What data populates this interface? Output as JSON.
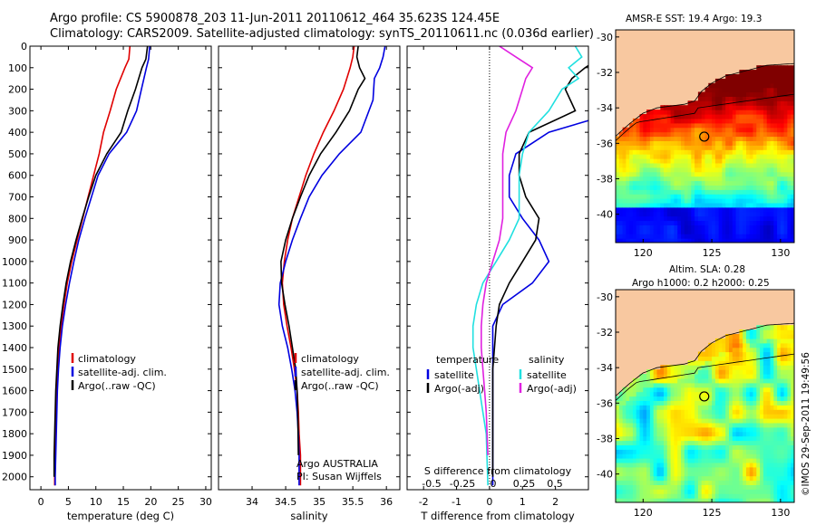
{
  "title_line1": "Argo profile: CS 5900878_203 11-Jun-2011 20110612_464 35.623S 124.45E",
  "title_line2": "Climatology: CARS2009. Satellite-adjusted climatology: synTS_20110611.nc (0.036d earlier)",
  "sst_title": "AMSR-E SST: 19.4  Argo: 19.3",
  "sla_title_line1": "Altim. SLA: 0.28",
  "sla_title_line2": "Argo h1000: 0.2 h2000: 0.25",
  "credit": "©IMOS 29-Sep-2011 19:49:56",
  "colors": {
    "climatology": "#e00000",
    "satellite": "#0000e0",
    "argo": "#000000",
    "salinity_sat": "#20e0e0",
    "salinity_argo": "#e020e0",
    "land": "#f8c8a0"
  },
  "chart_data": [
    {
      "type": "line",
      "name": "temperature",
      "xlabel": "temperature (deg C)",
      "xlim": [
        -2,
        31
      ],
      "ylim": [
        0,
        2060
      ],
      "yticks": [
        0,
        100,
        200,
        300,
        400,
        500,
        600,
        700,
        800,
        900,
        1000,
        1100,
        1200,
        1300,
        1400,
        1500,
        1600,
        1700,
        1800,
        1900,
        2000
      ],
      "xticks": [
        0,
        5,
        10,
        15,
        20,
        25,
        30
      ],
      "legend": [
        "climatology",
        "satellite-adj. clim.",
        "Argo(..raw -QC)"
      ],
      "series": [
        {
          "name": "climatology",
          "color": "#e00000",
          "x": [
            16.2,
            16.0,
            15.3,
            13.7,
            12.6,
            11.4,
            10.6,
            9.6,
            8.6,
            7.6,
            6.6,
            5.6,
            4.8,
            4.2,
            3.7,
            3.3,
            3.0,
            2.8,
            2.7,
            2.6,
            2.5,
            2.5,
            2.5
          ],
          "y": [
            0,
            60,
            100,
            200,
            300,
            400,
            500,
            600,
            700,
            800,
            900,
            1000,
            1100,
            1200,
            1300,
            1400,
            1500,
            1600,
            1700,
            1800,
            1900,
            2000,
            2040
          ]
        },
        {
          "name": "satellite-adj. clim.",
          "color": "#0000e0",
          "x": [
            19.8,
            19.6,
            19.2,
            18.3,
            17.4,
            15.6,
            12.4,
            10.4,
            9.2,
            8.0,
            6.9,
            6.0,
            5.2,
            4.5,
            3.9,
            3.5,
            3.2,
            3.0,
            2.9,
            2.8,
            2.7,
            2.6,
            2.6
          ],
          "y": [
            0,
            60,
            100,
            200,
            300,
            400,
            500,
            600,
            700,
            800,
            900,
            1000,
            1100,
            1200,
            1300,
            1400,
            1500,
            1600,
            1700,
            1800,
            1900,
            2000,
            2040
          ]
        },
        {
          "name": "Argo(..raw -QC)",
          "color": "#000000",
          "x": [
            19.4,
            19.1,
            18.4,
            17.2,
            15.8,
            14.6,
            12.0,
            10.0,
            8.7,
            7.5,
            6.4,
            5.4,
            4.6,
            4.0,
            3.5,
            3.1,
            2.9,
            2.7,
            2.6,
            2.5,
            2.4,
            2.4
          ],
          "y": [
            0,
            60,
            100,
            200,
            300,
            400,
            500,
            600,
            700,
            800,
            900,
            1000,
            1100,
            1200,
            1300,
            1400,
            1500,
            1600,
            1700,
            1800,
            1900,
            2000
          ]
        }
      ]
    },
    {
      "type": "line",
      "name": "salinity",
      "xlabel": "salinity",
      "xlim": [
        33.5,
        36.2
      ],
      "ylim": [
        0,
        2060
      ],
      "xticks": [
        34,
        34.5,
        35,
        35.5,
        36
      ],
      "legend": [
        "climatology",
        "satellite-adj. clim.",
        "Argo(..raw -QC)"
      ],
      "annotation": [
        "Argo AUSTRALIA",
        "PI: Susan Wijffels"
      ],
      "series": [
        {
          "name": "climatology",
          "color": "#e00000",
          "x": [
            35.52,
            35.5,
            35.46,
            35.36,
            35.22,
            35.06,
            34.92,
            34.8,
            34.7,
            34.6,
            34.53,
            34.48,
            34.45,
            34.47,
            34.52,
            34.58,
            34.63,
            34.67,
            34.69,
            34.7,
            34.72,
            34.72
          ],
          "y": [
            0,
            50,
            100,
            200,
            300,
            400,
            500,
            600,
            700,
            800,
            900,
            1000,
            1100,
            1200,
            1300,
            1400,
            1500,
            1600,
            1700,
            1800,
            1900,
            2040
          ]
        },
        {
          "name": "satellite-adj. clim.",
          "color": "#0000e0",
          "x": [
            35.98,
            35.95,
            35.9,
            35.82,
            35.8,
            35.62,
            35.3,
            35.04,
            34.85,
            34.72,
            34.6,
            34.5,
            34.42,
            34.4,
            34.45,
            34.53,
            34.59,
            34.64,
            34.67,
            34.69,
            34.7,
            34.7
          ],
          "y": [
            0,
            50,
            100,
            150,
            250,
            400,
            500,
            600,
            700,
            800,
            900,
            1000,
            1100,
            1200,
            1300,
            1400,
            1500,
            1600,
            1700,
            1800,
            1900,
            2040
          ]
        },
        {
          "name": "Argo(..raw -QC)",
          "color": "#000000",
          "x": [
            35.58,
            35.56,
            35.6,
            35.68,
            35.58,
            35.45,
            35.25,
            35.02,
            34.85,
            34.72,
            34.6,
            34.5,
            34.43,
            34.44,
            34.49,
            34.55,
            34.6,
            34.65,
            34.67,
            34.68,
            34.69
          ],
          "y": [
            0,
            50,
            100,
            150,
            200,
            300,
            400,
            500,
            600,
            700,
            800,
            900,
            1000,
            1100,
            1200,
            1300,
            1400,
            1500,
            1600,
            1700,
            1900
          ]
        }
      ]
    },
    {
      "type": "line",
      "name": "difference",
      "xlabel": "T difference from climatology",
      "xlabel2": "S difference from climatology",
      "xlim": [
        -2.5,
        3
      ],
      "ylim": [
        0,
        2060
      ],
      "xticks": [
        -2,
        -1,
        0,
        1,
        2
      ],
      "xticks_top": [
        "-0.5",
        "-0.25",
        "0",
        "0.25",
        "0.5"
      ],
      "legend_left_title": "temperature",
      "legend_right_title": "salinity",
      "legend_left": [
        "satellite",
        "Argo(-adj)"
      ],
      "legend_right": [
        "satellite",
        "Argo(-adj)"
      ],
      "series": [
        {
          "name": "temperature satellite",
          "color": "#0000e0",
          "x": [
            3.6,
            3.5,
            3.2,
            3.5,
            4.6,
            4.0,
            1.8,
            0.8,
            0.6,
            0.6,
            1.0,
            1.5,
            1.8,
            1.3,
            0.4,
            0.1,
            0.1,
            0.1,
            0.1,
            0.1,
            0.1
          ],
          "y": [
            0,
            80,
            100,
            150,
            200,
            300,
            400,
            500,
            600,
            700,
            800,
            900,
            1000,
            1100,
            1200,
            1300,
            1400,
            1500,
            1600,
            1800,
            2040
          ]
        },
        {
          "name": "temperature Argo(-adj)",
          "color": "#000000",
          "x": [
            3.2,
            3.1,
            2.9,
            2.5,
            2.3,
            2.6,
            1.2,
            0.9,
            0.9,
            1.1,
            1.5,
            1.4,
            1.0,
            0.6,
            0.3,
            0.2,
            0.15,
            0.1,
            0.1,
            0.1,
            0.1
          ],
          "y": [
            0,
            80,
            100,
            150,
            200,
            300,
            400,
            500,
            600,
            700,
            800,
            900,
            1000,
            1100,
            1200,
            1300,
            1400,
            1500,
            1600,
            1800,
            2000
          ]
        },
        {
          "name": "salinity satellite",
          "color": "#20e0e0",
          "x": [
            2.6,
            2.8,
            2.4,
            2.7,
            2.2,
            1.8,
            1.2,
            1.0,
            0.9,
            0.9,
            0.9,
            0.6,
            0.2,
            -0.2,
            -0.4,
            -0.5,
            -0.5,
            -0.4,
            -0.3,
            -0.2,
            -0.1,
            -0.05
          ],
          "y": [
            0,
            50,
            100,
            150,
            200,
            300,
            400,
            500,
            600,
            700,
            800,
            900,
            1000,
            1100,
            1200,
            1300,
            1400,
            1500,
            1600,
            1700,
            1800,
            2040
          ]
        },
        {
          "name": "salinity Argo(-adj)",
          "color": "#e020e0",
          "x": [
            0.3,
            0.8,
            1.3,
            1.1,
            1.0,
            0.8,
            0.5,
            0.4,
            0.4,
            0.4,
            0.4,
            0.3,
            0.1,
            -0.1,
            -0.2,
            -0.25,
            -0.25,
            -0.2,
            -0.15,
            -0.1,
            -0.05
          ],
          "y": [
            0,
            50,
            100,
            150,
            200,
            300,
            400,
            500,
            600,
            700,
            800,
            900,
            1000,
            1100,
            1200,
            1300,
            1400,
            1500,
            1600,
            1700,
            1900
          ]
        }
      ]
    },
    {
      "type": "heatmap",
      "name": "sst-map",
      "title": "AMSR-E SST: 19.4  Argo: 19.3",
      "xticks": [
        120,
        125,
        130
      ],
      "yticks": [
        -30,
        -32,
        -34,
        -36,
        -38,
        -40
      ],
      "xlim": [
        118,
        131
      ],
      "ylim": [
        -41.6,
        -29.6
      ],
      "profile_location": [
        124.45,
        -35.623
      ]
    },
    {
      "type": "heatmap",
      "name": "sla-map",
      "title": "Altim. SLA: 0.28",
      "xticks": [
        120,
        125,
        130
      ],
      "yticks": [
        -30,
        -32,
        -34,
        -36,
        -38,
        -40
      ],
      "xlim": [
        118,
        131
      ],
      "ylim": [
        -41.6,
        -29.6
      ],
      "profile_location": [
        124.45,
        -35.623
      ]
    }
  ]
}
